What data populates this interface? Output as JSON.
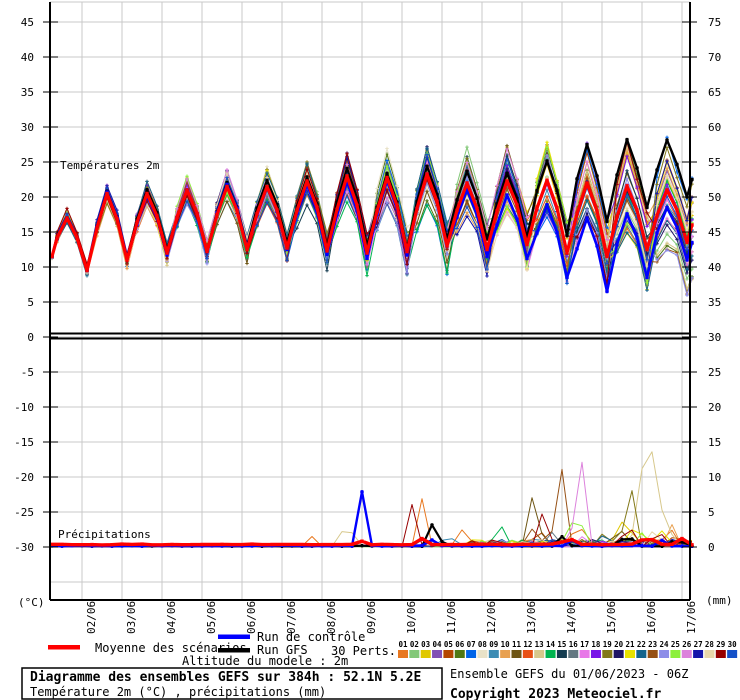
{
  "panel_labels": {
    "temperature": "Températures 2m",
    "precipitation": "Précipitations"
  },
  "axes": {
    "left_unit": "(°C)",
    "right_unit": "(mm)",
    "left_ticks": [
      "45",
      "40",
      "35",
      "30",
      "25",
      "20",
      "15",
      "10",
      "5",
      "0",
      "-5",
      "-10",
      "-15",
      "-20",
      "-25",
      "-30"
    ],
    "right_ticks": [
      "75",
      "70",
      "65",
      "60",
      "55",
      "50",
      "45",
      "40",
      "35",
      "30",
      "25",
      "20",
      "15",
      "10",
      "5",
      "0"
    ],
    "x_labels": [
      "02/06",
      "03/06",
      "04/06",
      "05/06",
      "06/06",
      "07/06",
      "08/06",
      "09/06",
      "10/06",
      "11/06",
      "12/06",
      "13/06",
      "14/06",
      "15/06",
      "16/06",
      "17/06"
    ]
  },
  "legend": {
    "mean": "Moyenne des scénarios",
    "control": "Run de contrôle",
    "gfs": "Run GFS",
    "perts": "30 Perts.",
    "altitude": "Altitude du modele : 2m",
    "mean_color": "#ff0000",
    "control_color": "#0000ff",
    "gfs_color": "#000000",
    "members": [
      {
        "num": "01",
        "color": "#e87820"
      },
      {
        "num": "02",
        "color": "#82c878"
      },
      {
        "num": "03",
        "color": "#e0c800"
      },
      {
        "num": "04",
        "color": "#8250b4"
      },
      {
        "num": "05",
        "color": "#b44600"
      },
      {
        "num": "06",
        "color": "#507814"
      },
      {
        "num": "07",
        "color": "#0064e8"
      },
      {
        "num": "08",
        "color": "#e8e2c8"
      },
      {
        "num": "09",
        "color": "#3c8cb4"
      },
      {
        "num": "10",
        "color": "#e8a050"
      },
      {
        "num": "11",
        "color": "#6e5514"
      },
      {
        "num": "12",
        "color": "#e85014"
      },
      {
        "num": "13",
        "color": "#d7c88c"
      },
      {
        "num": "14",
        "color": "#00b450"
      },
      {
        "num": "15",
        "color": "#143c50"
      },
      {
        "num": "16",
        "color": "#647882"
      },
      {
        "num": "17",
        "color": "#e878e8"
      },
      {
        "num": "18",
        "color": "#7814e8"
      },
      {
        "num": "19",
        "color": "#827819"
      },
      {
        "num": "20",
        "color": "#1e1464"
      },
      {
        "num": "21",
        "color": "#e8e200"
      },
      {
        "num": "22",
        "color": "#14648c"
      },
      {
        "num": "23",
        "color": "#965014"
      },
      {
        "num": "24",
        "color": "#8c8ce8"
      },
      {
        "num": "25",
        "color": "#8cf03c"
      },
      {
        "num": "26",
        "color": "#dc82dc"
      },
      {
        "num": "27",
        "color": "#1414aa"
      },
      {
        "num": "28",
        "color": "#e8d7aa"
      },
      {
        "num": "29",
        "color": "#960000"
      },
      {
        "num": "30",
        "color": "#1450c8"
      }
    ]
  },
  "footer": {
    "title": "Diagramme des ensembles GEFS sur 384h : 52.1N 5.2E",
    "subtitle": "Température 2m (°C) , précipitations (mm)",
    "run_info": "Ensemble GEFS du 01/06/2023 - 06Z",
    "copyright": "Copyright 2023 Meteociel.fr"
  },
  "chart_data": {
    "type": "line",
    "x_axis": {
      "run_start": "01/06/2023 06Z",
      "hours": 384,
      "day_labels": [
        "02/06",
        "03/06",
        "04/06",
        "05/06",
        "06/06",
        "07/06",
        "08/06",
        "09/06",
        "10/06",
        "11/06",
        "12/06",
        "13/06",
        "14/06",
        "15/06",
        "16/06",
        "17/06"
      ]
    },
    "temperature": {
      "ylabel_left_range": [
        -30,
        45
      ],
      "ylabel_right_range": [
        0,
        75
      ],
      "start_value": 11.5,
      "end_value": 16,
      "mean_daily_max": [
        17,
        20.5,
        20.5,
        21,
        21.5,
        21.5,
        22.3,
        23,
        22.8,
        23.3,
        22,
        22.3,
        22.4,
        22,
        21.6,
        21
      ],
      "mean_daily_min": [
        9.5,
        11,
        12,
        12.2,
        12.5,
        12.7,
        12.3,
        12,
        12.2,
        13,
        12.5,
        13.2,
        12,
        11.5,
        12.5,
        13.5
      ],
      "spread_daily": [
        0.7,
        1.1,
        1.4,
        1.6,
        1.9,
        2.2,
        2.6,
        3.0,
        3.4,
        3.8,
        4.0,
        4.4,
        4.8,
        5.2,
        6.0,
        7.0
      ],
      "control_daily_offset": [
        0,
        0.2,
        -0.3,
        0,
        0.3,
        -0.2,
        -0.5,
        -0.8,
        -0.5,
        0,
        -1,
        -2,
        -3.5,
        -5,
        -4,
        -2.5
      ],
      "gfs_daily_offset": [
        0,
        0.3,
        0.5,
        0,
        0.5,
        0.8,
        0.5,
        1,
        0.5,
        1,
        1.5,
        1,
        2.5,
        5,
        6,
        6.5
      ]
    },
    "precipitation": {
      "y_range_mm": [
        0,
        30
      ],
      "mean_base": 0.3,
      "mean_events": [
        [
          186,
          0.5
        ],
        [
          222,
          0.9
        ],
        [
          310,
          1.1
        ],
        [
          357,
          1.3
        ],
        [
          378,
          0.9
        ]
      ],
      "control_events": [
        [
          186,
          7.7
        ],
        [
          228,
          0.9
        ],
        [
          312,
          0.8
        ],
        [
          366,
          0.8
        ]
      ],
      "gfs_events": [
        [
          229,
          3.6
        ],
        [
          306,
          1.3
        ],
        [
          345,
          1.9
        ],
        [
          375,
          1.2
        ]
      ],
      "member_events": {
        "1": [
          [
            156,
            1.2
          ],
          [
            222,
            6.6
          ],
          [
            246,
            2.4
          ],
          [
            315,
            3.4
          ],
          [
            372,
            2.2
          ]
        ],
        "3": [
          [
            344,
            4.4
          ]
        ],
        "5": [
          [
            294,
            2.0
          ],
          [
            375,
            2.0
          ]
        ],
        "7": [
          [
            225,
            1.5
          ]
        ],
        "9": [
          [
            237,
            1.8
          ]
        ],
        "10": [
          [
            372,
            3.0
          ]
        ],
        "11": [
          [
            289,
            8.4
          ],
          [
            340,
            3.0
          ]
        ],
        "13": [
          [
            177,
            4.0
          ],
          [
            351,
            2.0
          ],
          [
            357,
            19.0
          ],
          [
            363,
            8.0
          ],
          [
            369,
            2.5
          ]
        ],
        "14": [
          [
            269,
            3.1
          ]
        ],
        "16": [
          [
            300,
            2.0
          ]
        ],
        "17": [
          [
            320,
            1.2
          ]
        ],
        "19": [
          [
            331,
            2.0
          ],
          [
            347,
            9.4
          ]
        ],
        "21": [
          [
            350,
            2.5
          ],
          [
            367,
            2.6
          ]
        ],
        "22": [
          [
            330,
            1.5
          ]
        ],
        "23": [
          [
            288,
            2.0
          ],
          [
            305,
            13.3
          ]
        ],
        "25": [
          [
            315,
            5.1
          ],
          [
            354,
            1.5
          ]
        ],
        "26": [
          [
            317,
            14.5
          ]
        ],
        "28": [
          [
            361,
            2.5
          ]
        ],
        "29": [
          [
            216,
            5.8
          ],
          [
            295,
            5.4
          ],
          [
            345,
            3.0
          ],
          [
            365,
            2.0
          ]
        ]
      }
    }
  }
}
